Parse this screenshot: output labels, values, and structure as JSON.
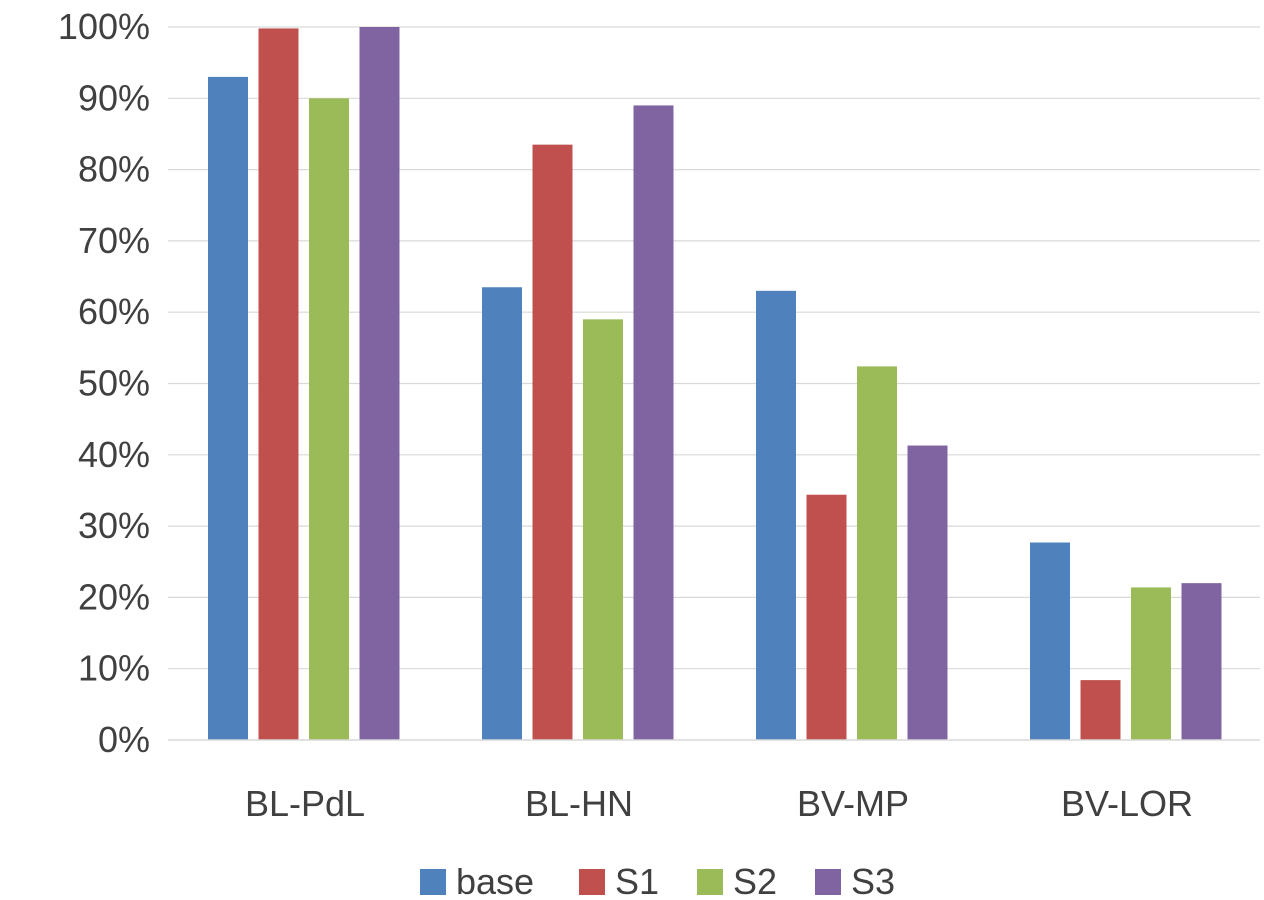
{
  "chart_data": {
    "type": "bar",
    "title": "",
    "xlabel": "",
    "ylabel": "",
    "categories": [
      "BL-PdL",
      "BL-HN",
      "BV-MP",
      "BV-LOR"
    ],
    "series": [
      {
        "name": "base",
        "color": "#4f81bd",
        "values": [
          93,
          63.5,
          63,
          27.7
        ]
      },
      {
        "name": "S1",
        "color": "#c0504d",
        "values": [
          99.8,
          83.5,
          34.4,
          8.4
        ]
      },
      {
        "name": "S2",
        "color": "#9bbb59",
        "values": [
          90,
          59,
          52.4,
          21.4
        ]
      },
      {
        "name": "S3",
        "color": "#8064a2",
        "values": [
          100,
          89,
          41.3,
          22
        ]
      }
    ],
    "ylim": [
      0,
      100
    ],
    "yticks": [
      0,
      10,
      20,
      30,
      40,
      50,
      60,
      70,
      80,
      90,
      100
    ],
    "ytick_format": "percent",
    "grid": true,
    "legend_position": "bottom"
  }
}
